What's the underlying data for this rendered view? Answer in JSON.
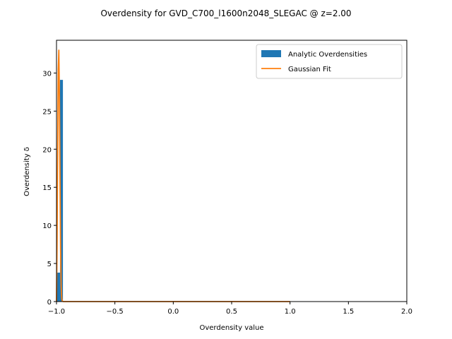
{
  "chart_data": {
    "type": "bar",
    "title": "Overdensity for GVD_C700_l1600n2048_SLEGAC @ z=2.00",
    "xlabel": "Overdensity value",
    "ylabel": "Overdensity δ",
    "xlim": [
      -1.0,
      2.0
    ],
    "ylim": [
      0,
      34.3
    ],
    "xticks": [
      -1.0,
      -0.5,
      0.0,
      0.5,
      1.0,
      1.5,
      2.0
    ],
    "xtick_labels": [
      "−1.0",
      "−0.5",
      "0.0",
      "0.5",
      "1.0",
      "1.5",
      "2.0"
    ],
    "yticks": [
      0,
      5,
      10,
      15,
      20,
      25,
      30
    ],
    "ytick_labels": [
      "0",
      "5",
      "10",
      "15",
      "20",
      "25",
      "30"
    ],
    "grid": false,
    "legend_position": "top-right",
    "histogram": {
      "name": "Analytic Overdensities",
      "color": "#1f77b4",
      "bins": [
        {
          "x0": -1.0,
          "x1": -0.97,
          "value": 3.8
        },
        {
          "x0": -0.97,
          "x1": -0.945,
          "value": 29.1
        }
      ]
    },
    "line": {
      "name": "Gaussian Fit",
      "color": "#ff7f0e",
      "x": [
        -1.0,
        -0.995,
        -0.99,
        -0.985,
        -0.98,
        -0.975,
        -0.97,
        -0.965,
        -0.96,
        -0.955,
        -0.95,
        -0.94,
        -0.9,
        -0.5,
        0.0,
        0.5,
        1.0
      ],
      "y": [
        0.0,
        8.0,
        20.0,
        30.5,
        33.0,
        27.0,
        16.0,
        7.0,
        2.0,
        0.4,
        0.05,
        0.0,
        0.0,
        0.0,
        0.0,
        0.0,
        0.0
      ]
    }
  }
}
